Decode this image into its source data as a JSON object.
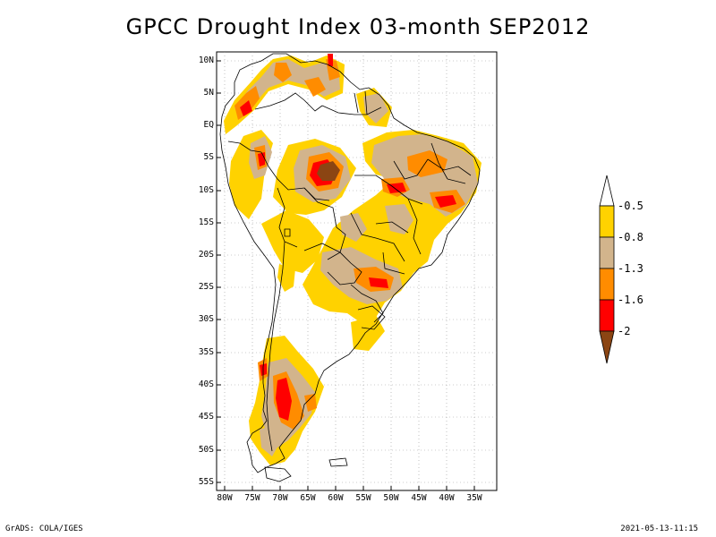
{
  "title": "GPCC Drought Index 03-month SEP2012",
  "footer": {
    "credit": "GrADS: COLA/IGES",
    "timestamp": "2021-05-13-11:15"
  },
  "axes": {
    "lat_labels": [
      "10N",
      "5N",
      "EQ",
      "5S",
      "10S",
      "15S",
      "20S",
      "25S",
      "30S",
      "35S",
      "40S",
      "45S",
      "50S",
      "55S"
    ],
    "lon_labels": [
      "80W",
      "75W",
      "70W",
      "65W",
      "60W",
      "55W",
      "50W",
      "45W",
      "40W",
      "35W"
    ]
  },
  "legend": {
    "labels": [
      "-0.5",
      "-0.8",
      "-1.3",
      "-1.6",
      "-2"
    ],
    "colors": [
      "#ffffff",
      "#ffd200",
      "#d2b48c",
      "#ff8c00",
      "#ff0000",
      "#8b4513"
    ]
  },
  "colors": {
    "none": "#ffffff",
    "mild": "#ffd200",
    "moderate": "#d2b48c",
    "severe": "#ff8c00",
    "extreme": "#ff0000",
    "exceptional": "#8b4513"
  }
}
